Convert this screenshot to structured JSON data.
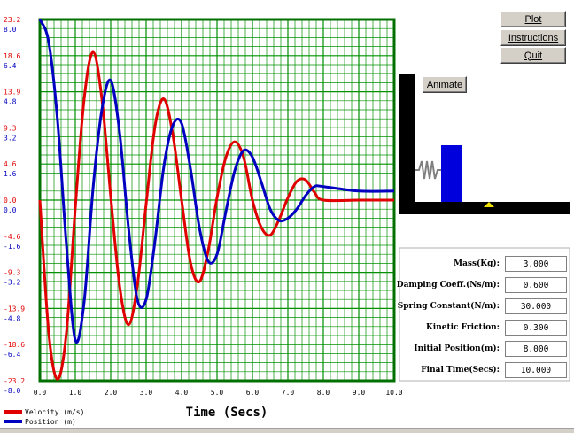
{
  "buttons": {
    "plot": "Plot",
    "instructions": "Instructions",
    "quit": "Quit",
    "animate": "Animate"
  },
  "params": [
    {
      "label": "Mass(Kg):",
      "value": "3.000"
    },
    {
      "label": "Damping Coeff.(Ns/m):",
      "value": "0.600"
    },
    {
      "label": "Spring Constant(N/m):",
      "value": "30.000"
    },
    {
      "label": "Kinetic Friction:",
      "value": "0.300"
    },
    {
      "label": "Initial Position(m):",
      "value": "8.000"
    },
    {
      "label": "Final Time(Secs):",
      "value": "10.000"
    }
  ],
  "legend": {
    "velocity": "Velocity (m/s)",
    "position": "Position (m)"
  },
  "colors": {
    "grid": "#009000",
    "frame": "#007000",
    "velocity": "#e00000",
    "position": "#0000c0",
    "mass_block": "#0000dd",
    "marker": "#f0e000"
  },
  "chart_data": {
    "type": "line",
    "xlabel": "Time (Secs)",
    "xlim": [
      0,
      10
    ],
    "x_ticks": [
      "0.0",
      "1.0",
      "2.0",
      "3.0",
      "4.0",
      "5.0",
      "6.0",
      "7.0",
      "8.0",
      "9.0",
      "10.0"
    ],
    "velocity_ticks": [
      "23.2",
      "18.6",
      "13.9",
      "9.3",
      "4.6",
      "0.0",
      "-4.6",
      "-9.3",
      "-13.9",
      "-18.6",
      "-23.2"
    ],
    "position_ticks": [
      "8.0",
      "6.4",
      "4.8",
      "3.2",
      "1.6",
      "0.0",
      "-1.6",
      "-3.2",
      "-4.8",
      "-6.4",
      "-8.0"
    ],
    "velocity_range": [
      -23.2,
      23.2
    ],
    "position_range": [
      -8.0,
      8.0
    ],
    "grid": true,
    "series": [
      {
        "name": "Velocity (m/s)",
        "x": [
          0.0,
          0.25,
          0.5,
          0.75,
          1.0,
          1.25,
          1.5,
          1.75,
          2.0,
          2.25,
          2.5,
          2.75,
          3.0,
          3.25,
          3.5,
          3.75,
          4.0,
          4.25,
          4.5,
          4.75,
          5.0,
          5.25,
          5.5,
          5.75,
          6.0,
          6.25,
          6.5,
          6.75,
          7.0,
          7.25,
          7.5,
          7.75,
          8.0,
          9.0,
          10.0
        ],
        "values": [
          0.0,
          -17.0,
          -23.0,
          -17.0,
          -1.0,
          13.0,
          19.0,
          13.0,
          0.5,
          -11.0,
          -16.0,
          -11.0,
          -0.5,
          9.5,
          13.0,
          8.5,
          0.0,
          -8.0,
          -10.5,
          -6.5,
          0.3,
          5.5,
          7.5,
          5.5,
          0.0,
          -3.5,
          -4.5,
          -2.5,
          0.3,
          2.4,
          2.6,
          1.0,
          0.0,
          0.0,
          0.0
        ]
      },
      {
        "name": "Position (m)",
        "x": [
          0.0,
          0.25,
          0.5,
          0.75,
          1.0,
          1.25,
          1.5,
          1.75,
          2.0,
          2.25,
          2.5,
          2.75,
          3.0,
          3.25,
          3.5,
          3.75,
          4.0,
          4.25,
          4.5,
          4.75,
          5.0,
          5.25,
          5.5,
          5.75,
          6.0,
          6.25,
          6.5,
          6.75,
          7.0,
          7.25,
          7.5,
          7.75,
          8.0,
          9.0,
          10.0
        ],
        "values": [
          8.0,
          7.0,
          3.5,
          -2.0,
          -6.2,
          -4.5,
          0.5,
          4.0,
          5.3,
          3.0,
          -1.2,
          -4.4,
          -4.4,
          -1.8,
          1.5,
          3.3,
          3.4,
          1.4,
          -1.2,
          -2.7,
          -2.4,
          -0.5,
          1.3,
          2.2,
          1.9,
          0.8,
          -0.4,
          -0.9,
          -0.8,
          -0.4,
          0.2,
          0.6,
          0.6,
          0.4,
          0.4
        ]
      }
    ]
  }
}
